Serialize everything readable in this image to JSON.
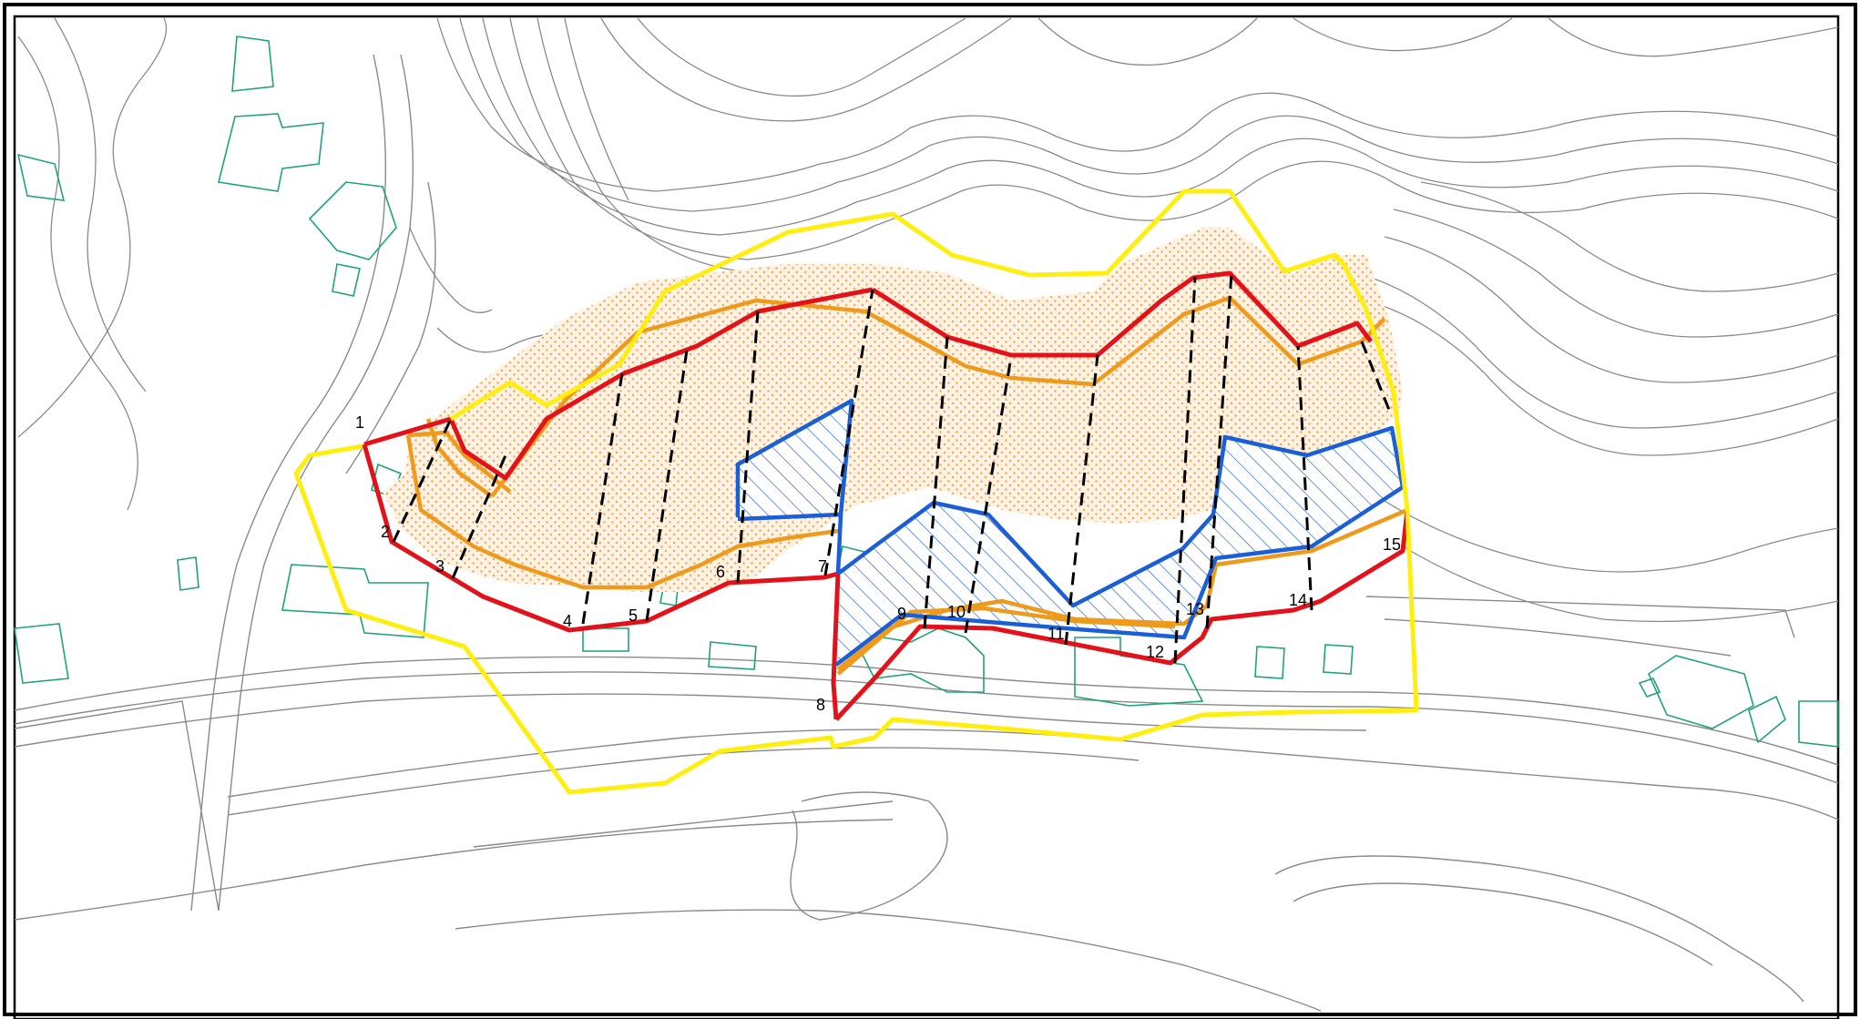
{
  "colors": {
    "frame": "#000000",
    "contour": "#8a8a8a",
    "building": "#1fa37a",
    "hazard_red_line": "#e3121a",
    "hazard_orange_line": "#ee9a1c",
    "yellow_boundary": "#ffee10",
    "blue_hatched_area": "#1a5fd6",
    "section_dashed_line": "#000000",
    "orange_dot_fill": "#f3a64c"
  },
  "section_points": [
    "1",
    "2",
    "3",
    "4",
    "5",
    "6",
    "7",
    "8",
    "9",
    "10",
    "11",
    "12",
    "13",
    "14",
    "15"
  ]
}
